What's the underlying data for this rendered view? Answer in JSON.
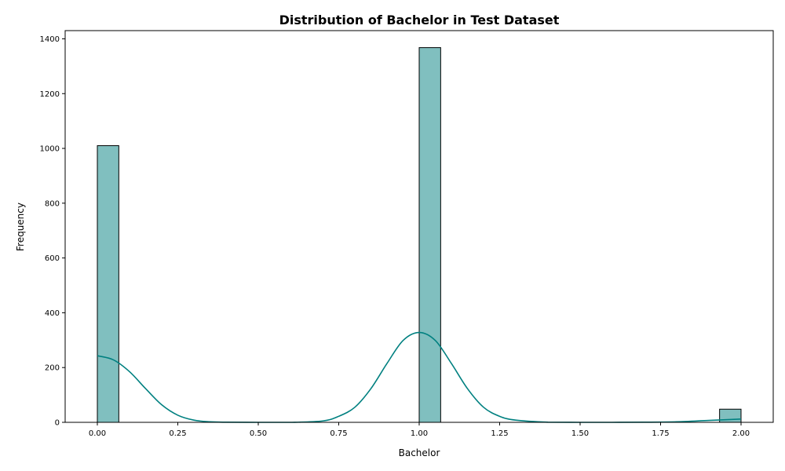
{
  "chart_data": {
    "type": "bar",
    "title": "Distribution of Bachelor in Test Dataset",
    "xlabel": "Bachelor",
    "ylabel": "Frequency",
    "xlim": [
      -0.1,
      2.1
    ],
    "ylim": [
      0,
      1430
    ],
    "x_ticks": [
      0.0,
      0.25,
      0.5,
      0.75,
      1.0,
      1.25,
      1.5,
      1.75,
      2.0
    ],
    "x_tick_labels": [
      "0.00",
      "0.25",
      "0.50",
      "0.75",
      "1.00",
      "1.25",
      "1.50",
      "1.75",
      "2.00"
    ],
    "y_ticks": [
      0,
      200,
      400,
      600,
      800,
      1000,
      1200,
      1400
    ],
    "y_tick_labels": [
      "0",
      "200",
      "400",
      "600",
      "800",
      "1000",
      "1200",
      "1400"
    ],
    "grid": false,
    "legend": false,
    "bin_width": 0.0667,
    "bins": [
      {
        "start": 0.0,
        "end": 0.0667,
        "count": 1010
      },
      {
        "start": 1.0,
        "end": 1.0667,
        "count": 1368
      },
      {
        "start": 1.9333,
        "end": 2.0,
        "count": 48
      }
    ],
    "kde": {
      "x": [
        0.0,
        0.05,
        0.1,
        0.15,
        0.2,
        0.25,
        0.3,
        0.35,
        0.4,
        0.5,
        0.6,
        0.7,
        0.75,
        0.8,
        0.85,
        0.9,
        0.95,
        1.0,
        1.05,
        1.1,
        1.15,
        1.2,
        1.25,
        1.3,
        1.4,
        1.5,
        1.6,
        1.7,
        1.8,
        1.9,
        2.0
      ],
      "y": [
        243,
        228,
        185,
        123,
        64,
        26,
        8,
        2,
        0.5,
        0,
        0,
        5,
        22,
        55,
        123,
        215,
        299,
        328,
        299,
        215,
        123,
        55,
        22,
        8,
        0.5,
        0,
        0,
        0.5,
        2,
        7,
        12
      ]
    },
    "colors": {
      "bar_fill": "#80bfbf",
      "bar_edge": "#000000",
      "kde_line": "#008080"
    }
  }
}
